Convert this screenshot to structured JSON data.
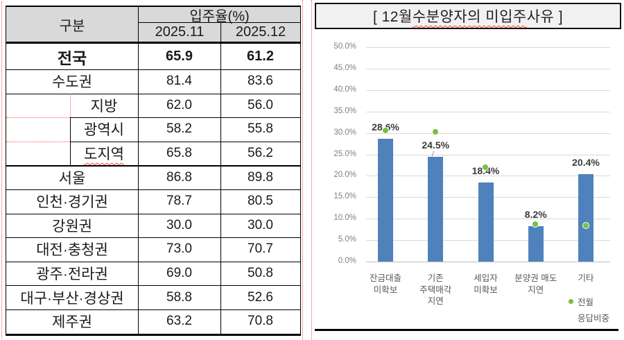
{
  "colors": {
    "bar_blue": "#4f81bd",
    "marker_green": "#76c043",
    "header_gray": "#d9d9d9",
    "title_bar_gray": "#f1f1f1",
    "pagebreak_red": "#ff5050",
    "grid_gray": "#d9d9d9"
  },
  "table": {
    "header": {
      "group": "구분",
      "rate": "입주율(%)",
      "month1": "2025.11",
      "month2": "2025.12"
    },
    "rows": [
      {
        "label": "전국",
        "m1": "65.9",
        "m2": "61.2",
        "bold": true
      },
      {
        "label": "수도권",
        "m1": "81.4",
        "m2": "83.6"
      },
      {
        "label": "지방",
        "m1": "62.0",
        "m2": "56.0",
        "indent": true
      },
      {
        "label": "광역시",
        "m1": "58.2",
        "m2": "55.8",
        "indent": true
      },
      {
        "label": "도지역",
        "m1": "65.8",
        "m2": "56.2",
        "indent": true,
        "misspell_underline": true
      },
      {
        "label": "서울",
        "m1": "86.8",
        "m2": "89.8"
      },
      {
        "label": "인천·경기권",
        "m1": "78.7",
        "m2": "80.5"
      },
      {
        "label": "강원권",
        "m1": "30.0",
        "m2": "30.0"
      },
      {
        "label": "대전·충청권",
        "m1": "73.0",
        "m2": "70.7"
      },
      {
        "label": "광주·전라권",
        "m1": "69.0",
        "m2": "50.8"
      },
      {
        "label": "대구·부산·경상권",
        "m1": "58.8",
        "m2": "52.6"
      },
      {
        "label": "제주권",
        "m1": "63.2",
        "m2": "70.8"
      }
    ]
  },
  "chart": {
    "title_prefix": "[ 12월 ",
    "title_underlined": "수분양자의 미입주",
    "title_suffix": " 사유 ]",
    "legend_label": "전월\n응답비중"
  },
  "chart_data": {
    "type": "bar",
    "title": "[ 12월 수분양자의 미입주 사유 ]",
    "categories": [
      "잔금대출\n미확보",
      "기존\n주택매각\n지연",
      "세입자\n미확보",
      "분양권 매도\n지연",
      "기타"
    ],
    "series": [
      {
        "name": "12월 응답비중",
        "type": "bar",
        "color": "#4f81bd",
        "values": [
          28.6,
          24.5,
          18.4,
          8.2,
          20.4
        ],
        "labels": [
          "28.6%",
          "24.5%",
          "18.4%",
          "8.2%",
          "20.4%"
        ]
      },
      {
        "name": "전월 응답비중",
        "type": "point",
        "color": "#76c043",
        "values": [
          30.5,
          30.2,
          22.0,
          8.6,
          8.4
        ]
      }
    ],
    "ylim": [
      0,
      50
    ],
    "ytick_step": 5,
    "yticks": [
      "0.0%",
      "5.0%",
      "10.0%",
      "15.0%",
      "20.0%",
      "25.0%",
      "30.0%",
      "35.0%",
      "40.0%",
      "45.0%",
      "50.0%"
    ],
    "grid": true,
    "legend": "전월 응답비중",
    "legend_position": "bottom-right",
    "label_leader_line_indices": [
      1
    ]
  }
}
